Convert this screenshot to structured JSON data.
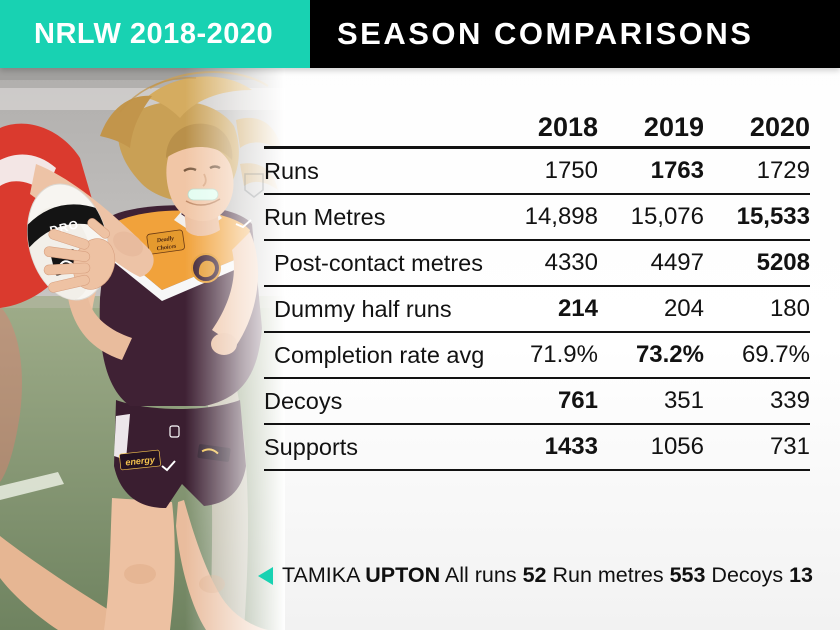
{
  "header": {
    "badge_label": "NRLW 2018-2020",
    "title": "SEASON COMPARISONS"
  },
  "colors": {
    "teal_accent": "#18D2B2",
    "banner_black": "#000000",
    "table_text": "#121212",
    "broncos_maroon": "#3F2134",
    "broncos_gold": "#F1A23B",
    "opponent_red": "#DA3A2E"
  },
  "table": {
    "columns": [
      "2018",
      "2019",
      "2020"
    ],
    "rows": [
      {
        "label": "Runs",
        "values": [
          "1750",
          "1763",
          "1729"
        ],
        "bold": [
          false,
          true,
          false
        ],
        "indent": false
      },
      {
        "label": "Run Metres",
        "values": [
          "14,898",
          "15,076",
          "15,533"
        ],
        "bold": [
          false,
          false,
          true
        ],
        "indent": false
      },
      {
        "label": "Post-contact metres",
        "values": [
          "4330",
          "4497",
          "5208"
        ],
        "bold": [
          false,
          false,
          true
        ],
        "indent": true
      },
      {
        "label": "Dummy half runs",
        "values": [
          "214",
          "204",
          "180"
        ],
        "bold": [
          true,
          false,
          false
        ],
        "indent": true
      },
      {
        "label": "Completion rate avg",
        "values": [
          "71.9%",
          "73.2%",
          "69.7%"
        ],
        "bold": [
          false,
          true,
          false
        ],
        "indent": true
      },
      {
        "label": "Decoys",
        "values": [
          "761",
          "351",
          "339"
        ],
        "bold": [
          true,
          false,
          false
        ],
        "indent": false
      },
      {
        "label": "Supports",
        "values": [
          "1433",
          "1056",
          "731"
        ],
        "bold": [
          true,
          false,
          false
        ],
        "indent": false
      }
    ]
  },
  "caption": {
    "arrow_icon": "teal-left-triangle",
    "segments": [
      {
        "text": "TAMIKA ",
        "bold": false
      },
      {
        "text": "UPTON",
        "bold": true
      },
      {
        "text": " All runs ",
        "bold": false
      },
      {
        "text": "52",
        "bold": true
      },
      {
        "text": " Run metres ",
        "bold": false
      },
      {
        "text": "553",
        "bold": true
      },
      {
        "text": " Decoys ",
        "bold": false
      },
      {
        "text": "13",
        "bold": true
      }
    ]
  },
  "photo": {
    "ball_text": "DRO",
    "jersey_badge_line1": "Deadly",
    "jersey_badge_line2": "Choices",
    "shorts_sponsor_text": "energy"
  },
  "chart_data": {
    "type": "table",
    "title": "SEASON COMPARISONS",
    "subtitle": "NRLW 2018-2020",
    "categories": [
      "2018",
      "2019",
      "2020"
    ],
    "series": [
      {
        "name": "Runs",
        "values": [
          1750,
          1763,
          1729
        ]
      },
      {
        "name": "Run Metres",
        "values": [
          14898,
          15076,
          15533
        ]
      },
      {
        "name": "Post-contact metres",
        "values": [
          4330,
          4497,
          5208
        ]
      },
      {
        "name": "Dummy half runs",
        "values": [
          214,
          204,
          180
        ]
      },
      {
        "name": "Completion rate avg",
        "values": [
          "71.9%",
          "73.2%",
          "69.7%"
        ]
      },
      {
        "name": "Decoys",
        "values": [
          761,
          351,
          339
        ]
      },
      {
        "name": "Supports",
        "values": [
          1433,
          1056,
          731
        ]
      }
    ],
    "annotations": [
      "TAMIKA UPTON All runs 52 Run metres 553 Decoys 13"
    ],
    "notes": "best value in each row is rendered bold"
  }
}
